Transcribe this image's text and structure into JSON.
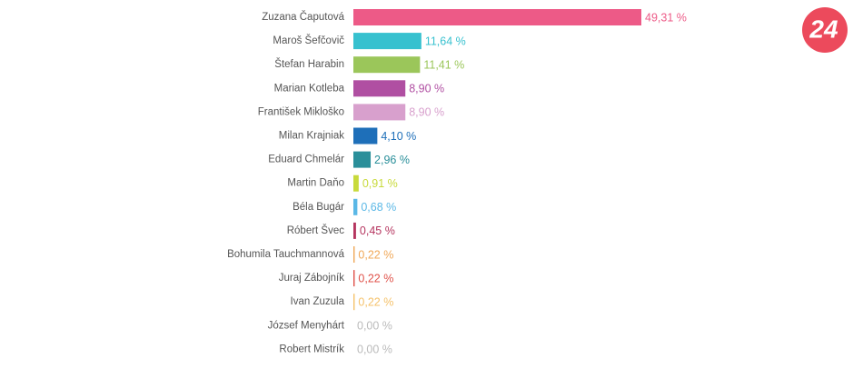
{
  "logo": "24",
  "chart_data": {
    "type": "bar",
    "orientation": "horizontal",
    "categories": [
      "Zuzana Čaputová",
      "Maroš Šefčovič",
      "Štefan Harabin",
      "Marian Kotleba",
      "František Mikloško",
      "Milan Krajniak",
      "Eduard Chmelár",
      "Martin Daňo",
      "Béla Bugár",
      "Róbert Švec",
      "Bohumila Tauchmannová",
      "Juraj Zábojník",
      "Ivan Zuzula",
      "József Menyhárt",
      "Robert Mistrík"
    ],
    "values": [
      49.31,
      11.64,
      11.41,
      8.9,
      8.9,
      4.1,
      2.96,
      0.91,
      0.68,
      0.45,
      0.22,
      0.22,
      0.22,
      0.0,
      0.0
    ],
    "value_labels": [
      "49,31 %",
      "11,64 %",
      "11,41 %",
      "8,90 %",
      "8,90 %",
      "4,10 %",
      "2,96 %",
      "0,91 %",
      "0,68 %",
      "0,45 %",
      "0,22 %",
      "0,22 %",
      "0,22 %",
      "0,00 %",
      "0,00 %"
    ],
    "colors": [
      "#ed5a87",
      "#37c1cf",
      "#9bc65a",
      "#b04fa2",
      "#d8a0cd",
      "#1e6fb9",
      "#2a8f9a",
      "#c8da3b",
      "#5bb8e6",
      "#b5355f",
      "#f0a858",
      "#e0524a",
      "#f5c26b",
      "#bbbbbb",
      "#bbbbbb"
    ]
  }
}
